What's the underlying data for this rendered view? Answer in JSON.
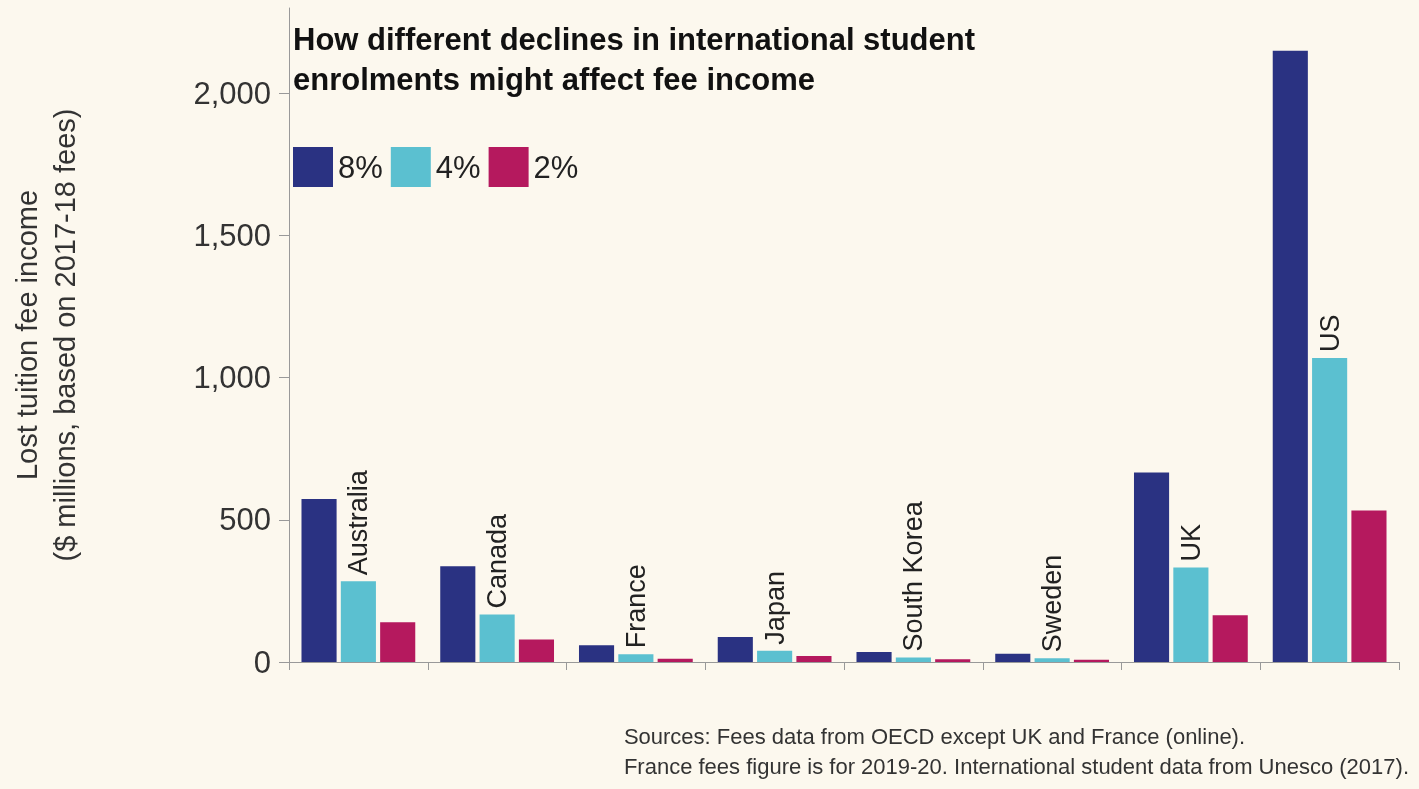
{
  "chart_data": {
    "type": "bar",
    "title": "How different declines in international student\nenrolments might affect fee income",
    "ylabel": "Lost tuition fee income\n($ millions, based on 2017-18 fees)",
    "categories": [
      "Australia",
      "Canada",
      "France",
      "Japan",
      "South Korea",
      "Sweden",
      "UK",
      "US"
    ],
    "series": [
      {
        "name": "8%",
        "color": "#2a3282",
        "values": [
          573,
          337,
          59,
          88,
          35,
          29,
          666,
          2150
        ]
      },
      {
        "name": "4%",
        "color": "#5bc0d0",
        "values": [
          284,
          167,
          27,
          40,
          16,
          13,
          332,
          1069
        ]
      },
      {
        "name": "2%",
        "color": "#b5195e",
        "values": [
          140,
          79,
          11,
          21,
          10,
          8,
          164,
          533
        ]
      }
    ],
    "ylim": [
      0,
      2300
    ],
    "yticks": [
      0,
      {
        "value": 500,
        "label": "500"
      },
      {
        "value": 1000,
        "label": "1,000"
      },
      {
        "value": 1500,
        "label": "1,500"
      },
      {
        "value": 2000,
        "label": "2,000"
      }
    ],
    "grid": false,
    "legend": "top left",
    "annotations": [
      "Sources: Fees data from OECD except UK and France (online).",
      "France fees figure is for 2019-20. International student data from Unesco (2017)."
    ]
  }
}
